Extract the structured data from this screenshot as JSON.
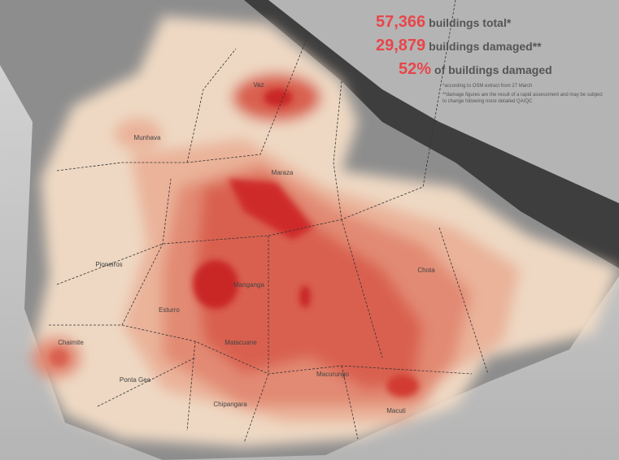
{
  "stats": [
    {
      "value": "57,366",
      "label": "buildings total*"
    },
    {
      "value": "29,879",
      "label": "buildings damaged**"
    },
    {
      "value": "52%",
      "label": "of buildings damaged"
    }
  ],
  "notes": [
    "*according to OSM extract from 27 March",
    "**damage figures are the result of a rapid assessment and may be subject to change following more detailed QA/QC"
  ],
  "neighborhoods": [
    "Vaz",
    "Munhava",
    "Maraza",
    "Pioneiros",
    "Manganga",
    "Chota",
    "Esturro",
    "Chaimite",
    "Matacuane",
    "Ponta Gea",
    "Macurungo",
    "Chipangara",
    "Macuti"
  ]
}
